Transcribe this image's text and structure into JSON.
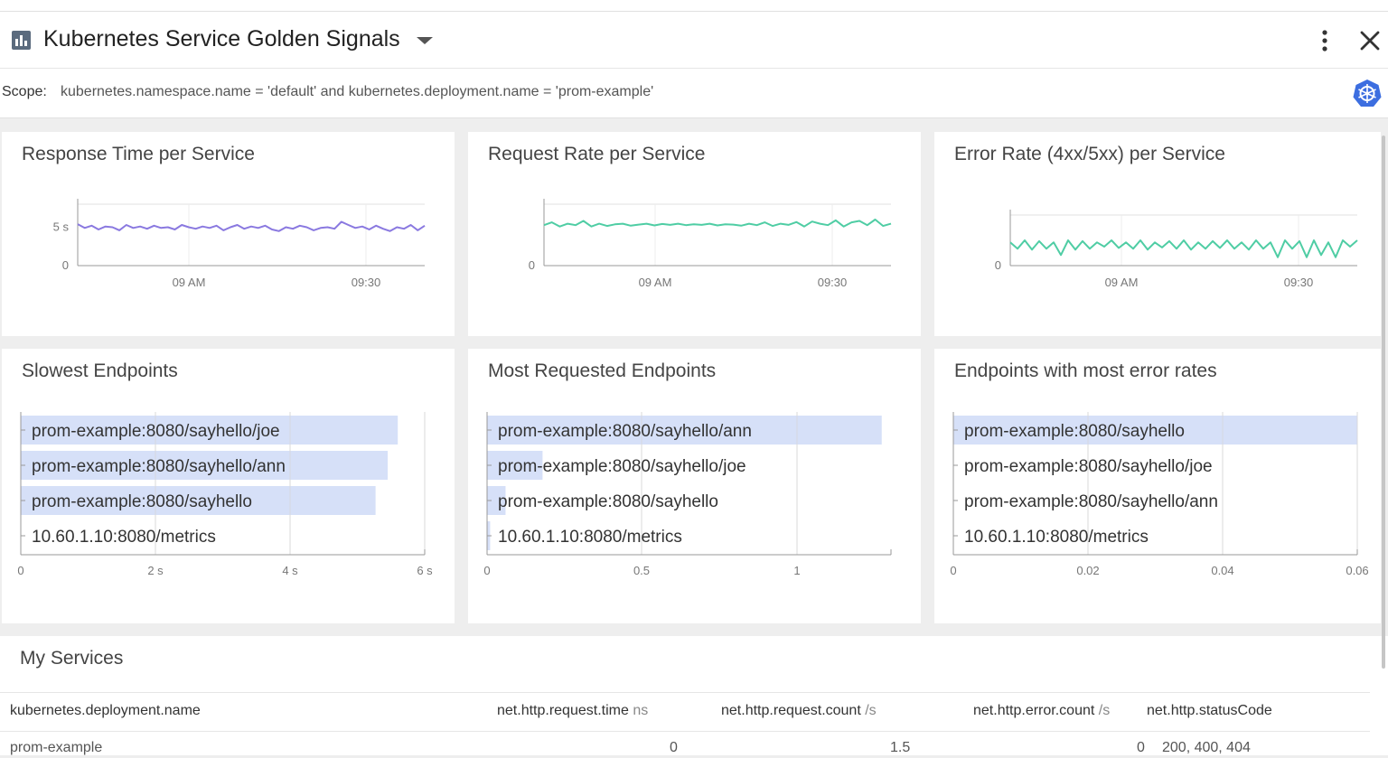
{
  "header": {
    "title": "Kubernetes Service Golden Signals",
    "icon": "dashboard-icon",
    "menu_icon": "more-vert-icon",
    "close_icon": "close-icon"
  },
  "scope": {
    "label": "Scope:",
    "value": "kubernetes.namespace.name = 'default' and kubernetes.deployment.name = 'prom-example'",
    "icon": "kubernetes-icon"
  },
  "colors": {
    "purple": "#8a79e0",
    "teal": "#4fcda4",
    "bar": "#d6e0f8",
    "kube": "#3c6ee0"
  },
  "panels": [
    {
      "title": "Response Time per Service"
    },
    {
      "title": "Request Rate per Service"
    },
    {
      "title": "Error Rate (4xx/5xx) per Service"
    },
    {
      "title": "Slowest Endpoints"
    },
    {
      "title": "Most Requested Endpoints"
    },
    {
      "title": "Endpoints with most error rates"
    }
  ],
  "chart_data": [
    {
      "type": "line",
      "title": "Response Time per Service",
      "x_ticks": [
        "09 AM",
        "09:30"
      ],
      "y_ticks": [
        "0",
        "5 s"
      ],
      "ylim": [
        0,
        8
      ],
      "series": [
        {
          "name": "prom-example",
          "values": [
            5.4,
            4.9,
            5.2,
            4.7,
            5.1,
            5.0,
            4.6,
            5.3,
            4.9,
            5.1,
            4.8,
            5.2,
            4.9,
            5.0,
            4.7,
            5.3,
            5.0,
            4.8,
            5.1,
            4.9,
            5.2,
            4.6,
            5.0,
            5.3,
            4.8,
            5.1,
            4.9,
            5.2,
            4.7,
            4.5,
            5.0,
            4.8,
            5.2,
            5.0,
            4.6,
            4.9,
            5.0,
            4.8,
            5.7,
            5.3,
            4.9,
            5.1,
            4.7,
            5.2,
            4.8,
            4.5,
            5.0,
            4.8,
            5.3,
            4.6,
            5.2
          ]
        }
      ]
    },
    {
      "type": "line",
      "title": "Request Rate per Service",
      "x_ticks": [
        "09 AM",
        "09:30"
      ],
      "y_ticks": [
        "0"
      ],
      "ylim": [
        0,
        2.2
      ],
      "series": [
        {
          "name": "prom-example",
          "values": [
            1.45,
            1.55,
            1.4,
            1.5,
            1.45,
            1.6,
            1.4,
            1.5,
            1.42,
            1.48,
            1.5,
            1.43,
            1.47,
            1.5,
            1.44,
            1.49,
            1.46,
            1.5,
            1.45,
            1.48,
            1.46,
            1.5,
            1.44,
            1.48,
            1.47,
            1.43,
            1.5,
            1.45,
            1.55,
            1.42,
            1.5,
            1.46,
            1.56,
            1.4,
            1.58,
            1.5,
            1.45,
            1.62,
            1.4,
            1.55,
            1.6,
            1.45,
            1.65,
            1.42,
            1.5
          ]
        }
      ]
    },
    {
      "type": "line",
      "title": "Error Rate (4xx/5xx) per Service",
      "x_ticks": [
        "09 AM",
        "09:30"
      ],
      "y_ticks": [
        "0"
      ],
      "ylim": [
        0,
        0.12
      ],
      "series": [
        {
          "name": "prom-example",
          "values": [
            0.055,
            0.04,
            0.06,
            0.038,
            0.058,
            0.04,
            0.055,
            0.025,
            0.06,
            0.038,
            0.058,
            0.04,
            0.055,
            0.045,
            0.06,
            0.042,
            0.055,
            0.04,
            0.06,
            0.038,
            0.055,
            0.043,
            0.058,
            0.04,
            0.06,
            0.038,
            0.055,
            0.04,
            0.058,
            0.042,
            0.06,
            0.04,
            0.055,
            0.038,
            0.06,
            0.04,
            0.055,
            0.02,
            0.06,
            0.04,
            0.058,
            0.02,
            0.06,
            0.025,
            0.055,
            0.02,
            0.06,
            0.045,
            0.06
          ]
        }
      ]
    },
    {
      "type": "bar",
      "title": "Slowest Endpoints",
      "categories": [
        "prom-example:8080/sayhello/joe",
        "prom-example:8080/sayhello/ann",
        "prom-example:8080/sayhello",
        "10.60.1.10:8080/metrics"
      ],
      "values": [
        5.6,
        5.45,
        5.27,
        0
      ],
      "x_ticks": [
        "0",
        "2 s",
        "4 s",
        "6 s"
      ],
      "xlim": [
        0,
        6
      ]
    },
    {
      "type": "bar",
      "title": "Most Requested Endpoints",
      "categories": [
        "prom-example:8080/sayhello/ann",
        "prom-example:8080/sayhello/joe",
        "prom-example:8080/sayhello",
        "10.60.1.10:8080/metrics"
      ],
      "values": [
        1.28,
        0.18,
        0.06,
        0.01
      ],
      "x_ticks": [
        "0",
        "0.5",
        "1"
      ],
      "xlim": [
        0,
        1.31
      ]
    },
    {
      "type": "bar",
      "title": "Endpoints with most error rates",
      "categories": [
        "prom-example:8080/sayhello",
        "prom-example:8080/sayhello/joe",
        "prom-example:8080/sayhello/ann",
        "10.60.1.10:8080/metrics"
      ],
      "values": [
        0.06,
        0,
        0,
        0
      ],
      "x_ticks": [
        "0",
        "0.02",
        "0.04",
        "0.06"
      ],
      "xlim": [
        0,
        0.06
      ]
    }
  ],
  "services": {
    "title": "My Services",
    "columns": [
      {
        "name": "kubernetes.deployment.name",
        "unit": ""
      },
      {
        "name": "net.http.request.time",
        "unit": "ns"
      },
      {
        "name": "net.http.request.count",
        "unit": "/s"
      },
      {
        "name": "net.http.error.count",
        "unit": "/s"
      },
      {
        "name": "net.http.statusCode",
        "unit": ""
      }
    ],
    "rows": [
      {
        "deployment": "prom-example",
        "request_time": "0",
        "request_count": "1.5",
        "error_count": "0",
        "status_code": "200, 400, 404"
      }
    ]
  }
}
